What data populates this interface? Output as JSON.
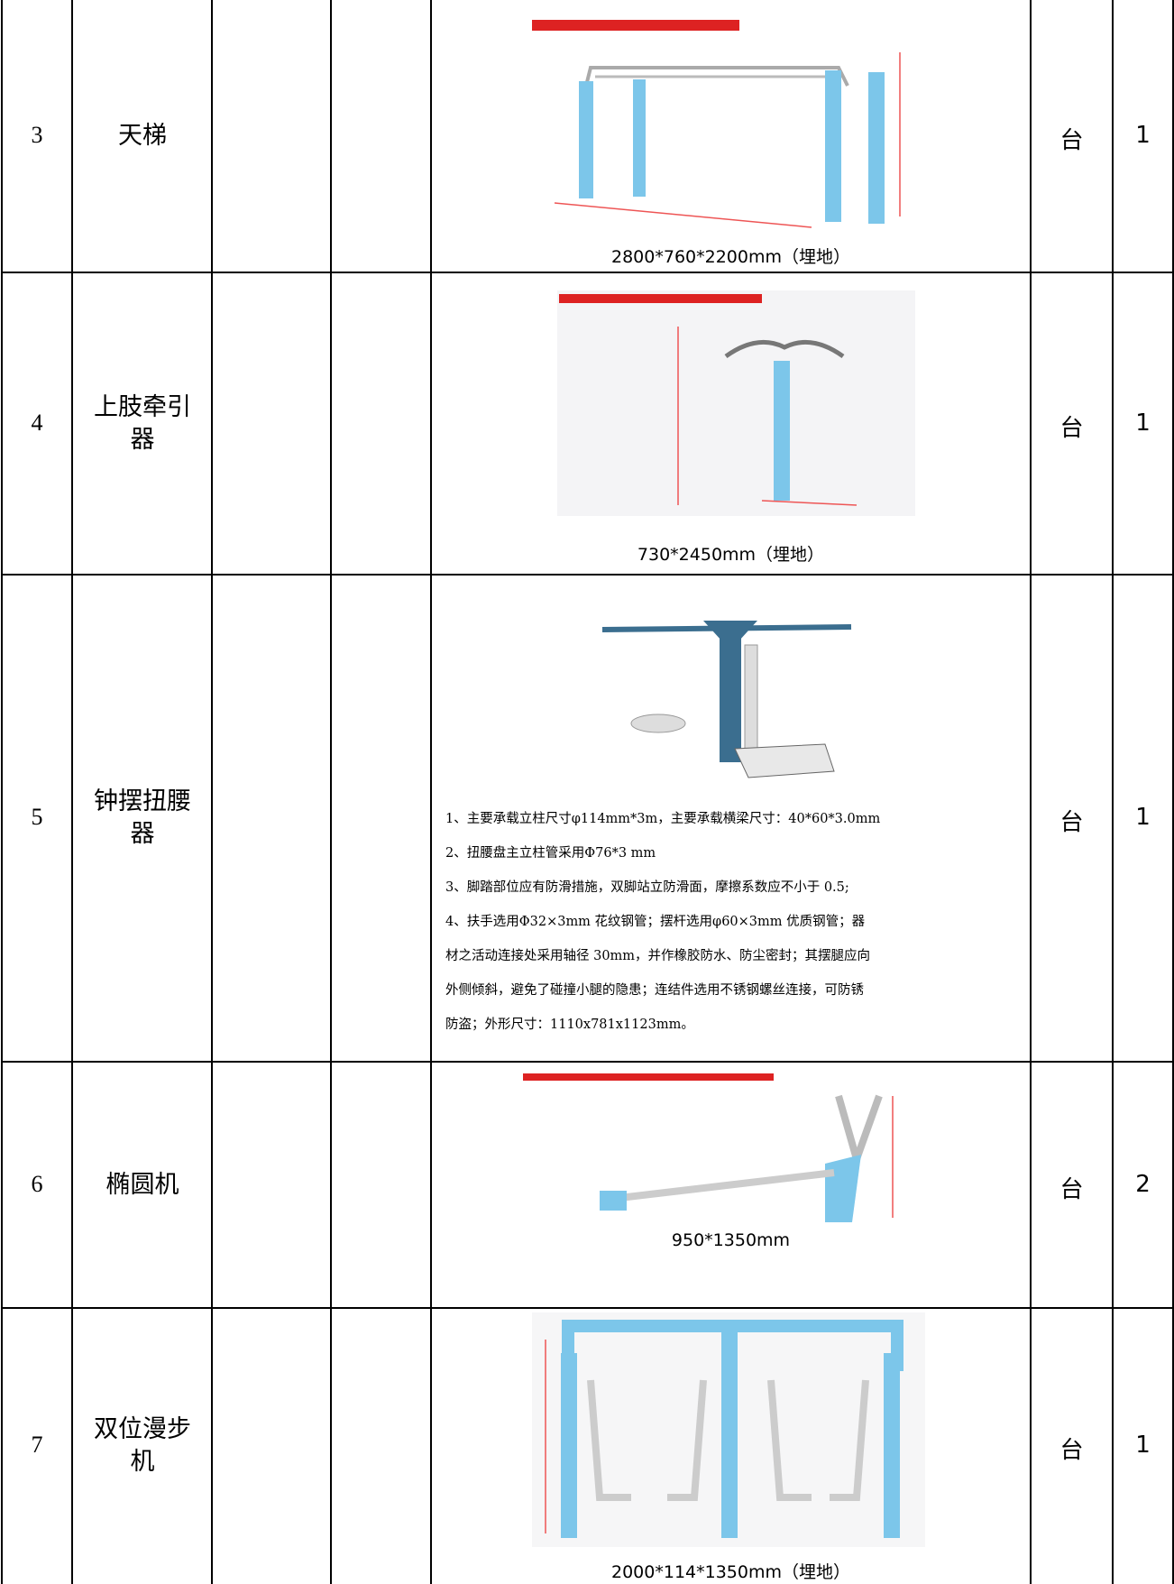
{
  "table": {
    "rows": [
      {
        "no": "3",
        "name": "天梯",
        "unit": "台",
        "qty": "1",
        "spec": [
          "2800*760*2200mm（埋地）"
        ]
      },
      {
        "no": "4",
        "name": "上肢牵引器",
        "unit": "台",
        "qty": "1",
        "spec": [
          "730*2450mm（埋地）"
        ]
      },
      {
        "no": "5",
        "name": "钟摆扭腰器",
        "unit": "台",
        "qty": "1",
        "spec": [
          "1、主要承载立柱尺寸φ114mm*3m，主要承载横梁尺寸：40*60*3.0mm",
          "2、扭腰盘主立柱管采用Φ76*3 mm",
          "3、脚踏部位应有防滑措施，双脚站立防滑面，摩擦系数应不小于 0.5;",
          "4、扶手选用Φ32×3mm 花纹钢管；摆杆选用φ60×3mm 优质钢管；器",
          "材之活动连接处采用轴径 30mm，并作橡胶防水、防尘密封；其摆腿应向",
          "外侧倾斜，避免了碰撞小腿的隐患；连结件选用不锈钢螺丝连接，可防锈",
          "防盗；外形尺寸：1110x781x1123mm。"
        ]
      },
      {
        "no": "6",
        "name": "椭圆机",
        "unit": "台",
        "qty": "2",
        "spec": [
          "950*1350mm"
        ]
      },
      {
        "no": "7",
        "name": "双位漫步机",
        "unit": "台",
        "qty": "1",
        "spec": [
          "2000*114*1350mm（埋地）"
        ]
      }
    ]
  }
}
